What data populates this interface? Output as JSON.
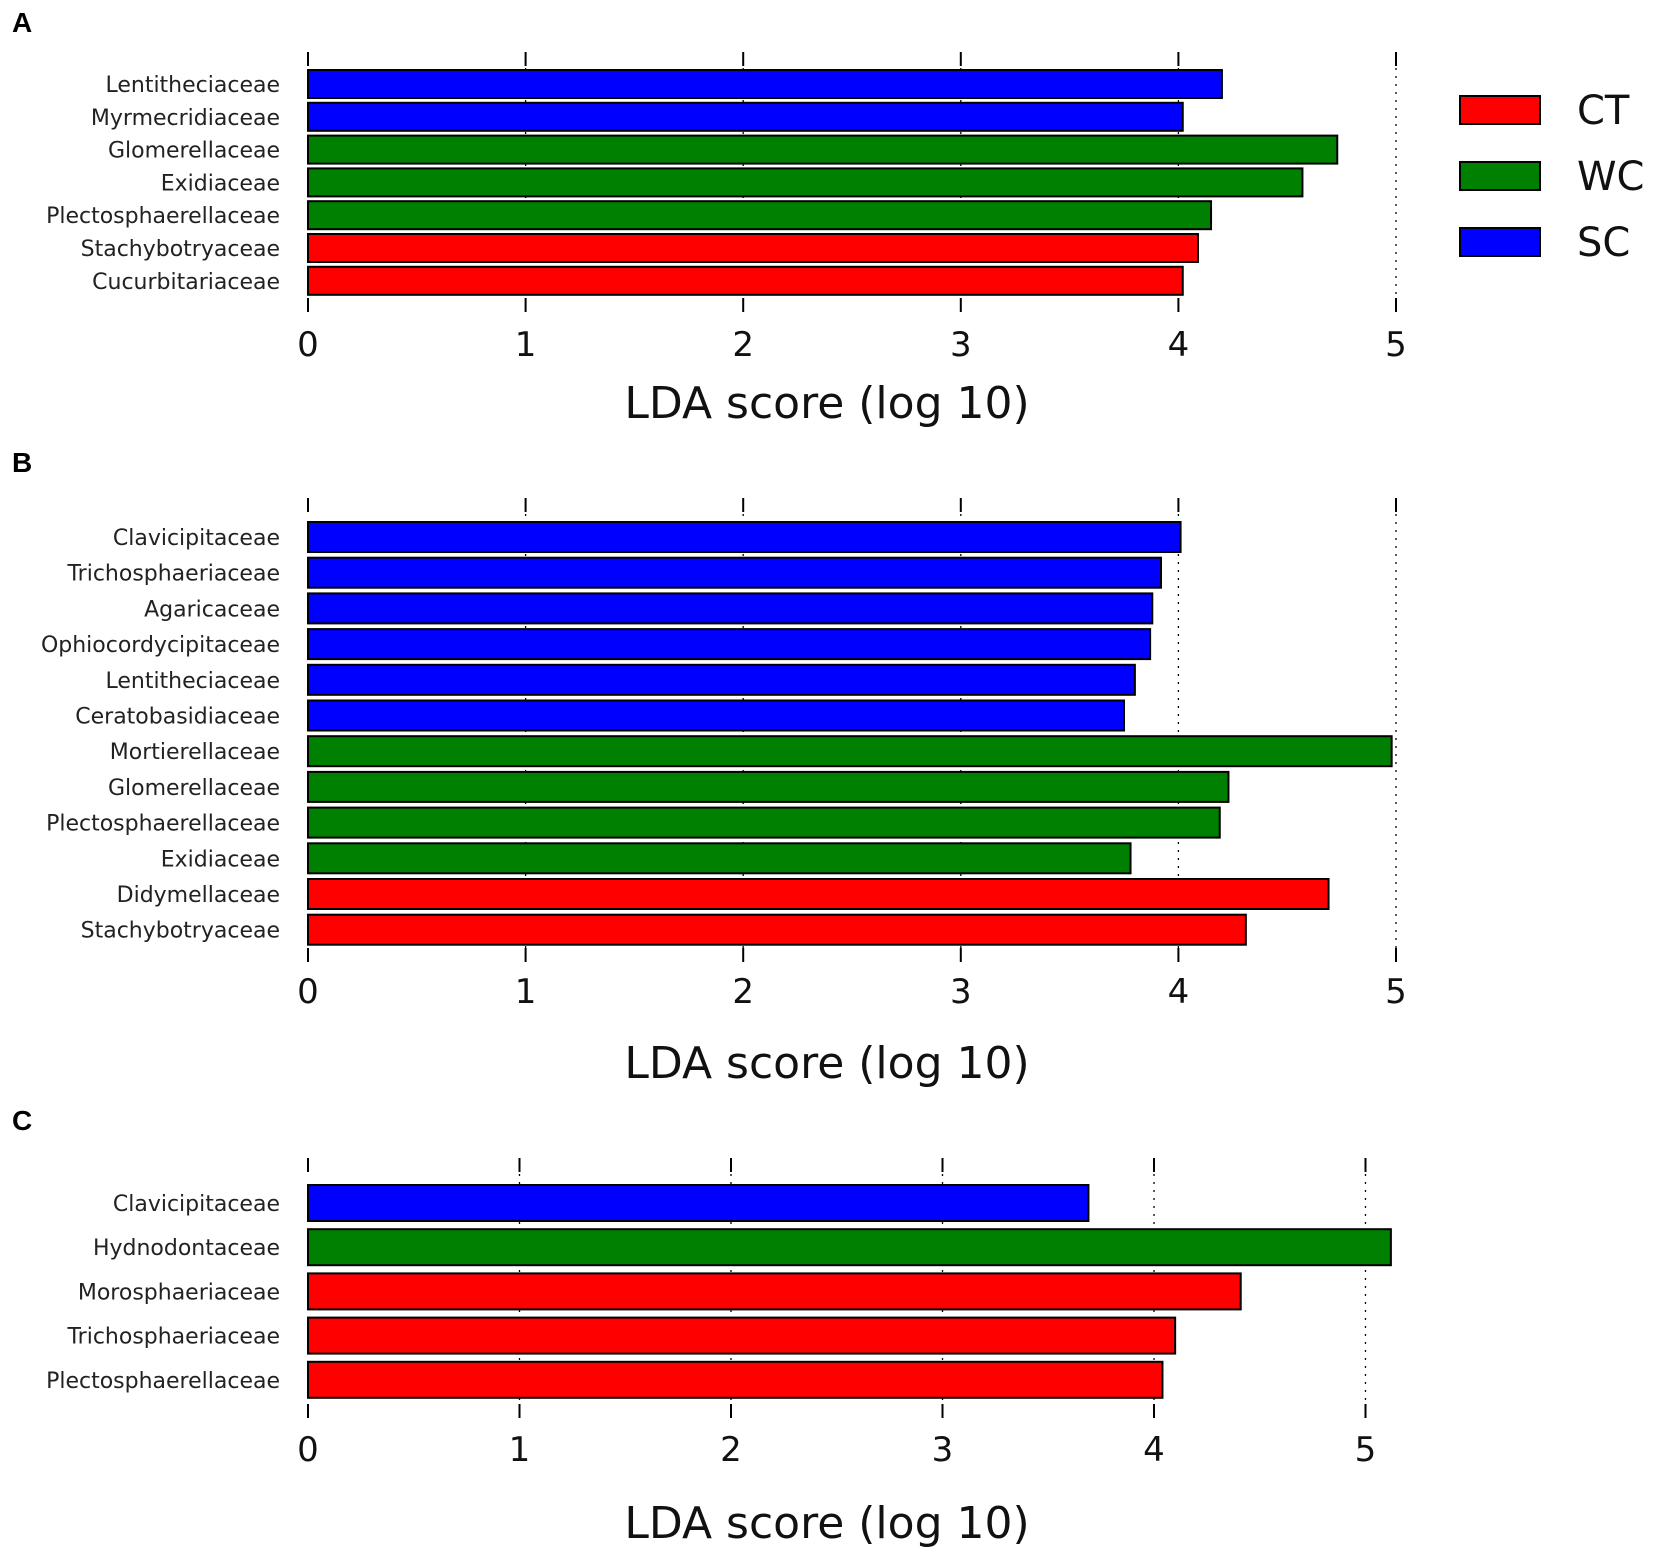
{
  "colors": {
    "CT": "#ff0000",
    "WC": "#008000",
    "SC": "#0000ff"
  },
  "legend": [
    {
      "key": "CT",
      "label": "CT"
    },
    {
      "key": "WC",
      "label": "WC"
    },
    {
      "key": "SC",
      "label": "SC"
    }
  ],
  "chart_data": [
    {
      "panel": "A",
      "type": "bar",
      "orientation": "horizontal",
      "xlabel": "LDA score (log 10)",
      "xlim": [
        0,
        5
      ],
      "ticks": [
        0,
        1,
        2,
        3,
        4,
        5
      ],
      "categories": [
        "Lentitheciaceae",
        "Myrmecridiaceae",
        "Glomerellaceae",
        "Exidiaceae",
        "Plectosphaerellaceae",
        "Stachybotryaceae",
        "Cucurbitariaceae"
      ],
      "values": [
        4.2,
        4.02,
        4.73,
        4.57,
        4.15,
        4.09,
        4.02
      ],
      "groups": [
        "SC",
        "SC",
        "WC",
        "WC",
        "WC",
        "CT",
        "CT"
      ]
    },
    {
      "panel": "B",
      "type": "bar",
      "orientation": "horizontal",
      "xlabel": "LDA score (log 10)",
      "xlim": [
        0,
        5
      ],
      "ticks": [
        0,
        1,
        2,
        3,
        4,
        5
      ],
      "categories": [
        "Clavicipitaceae",
        "Trichosphaeriaceae",
        "Agaricaceae",
        "Ophiocordycipitaceae",
        "Lentitheciaceae",
        "Ceratobasidiaceae",
        "Mortierellaceae",
        "Glomerellaceae",
        "Plectosphaerellaceae",
        "Exidiaceae",
        "Didymellaceae",
        "Stachybotryaceae"
      ],
      "values": [
        4.01,
        3.92,
        3.88,
        3.87,
        3.8,
        3.75,
        4.98,
        4.23,
        4.19,
        3.78,
        4.69,
        4.31
      ],
      "groups": [
        "SC",
        "SC",
        "SC",
        "SC",
        "SC",
        "SC",
        "WC",
        "WC",
        "WC",
        "WC",
        "CT",
        "CT"
      ]
    },
    {
      "panel": "C",
      "type": "bar",
      "orientation": "horizontal",
      "xlabel": "LDA score (log 10)",
      "xlim": [
        0,
        6
      ],
      "ticks": [
        0,
        1,
        2,
        3,
        4,
        5
      ],
      "categories": [
        "Clavicipitaceae",
        "Hydnodontaceae",
        "Morosphaeriaceae",
        "Trichosphaeriaceae",
        "Plectosphaerellaceae"
      ],
      "values": [
        3.69,
        5.12,
        4.41,
        4.1,
        4.04
      ],
      "groups": [
        "SC",
        "WC",
        "CT",
        "CT",
        "CT"
      ]
    }
  ]
}
